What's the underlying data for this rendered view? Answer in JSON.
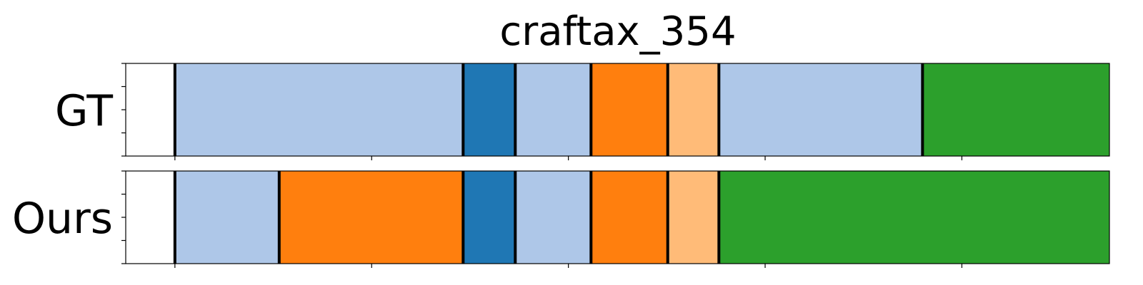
{
  "chart_data": {
    "type": "bar",
    "title": "craftax_354",
    "xlim": [
      0,
      1000
    ],
    "rows": [
      {
        "label": "GT",
        "segments": [
          {
            "start": 50,
            "end": 343,
            "color": "#aec7e8"
          },
          {
            "start": 343,
            "end": 396,
            "color": "#1f77b4"
          },
          {
            "start": 396,
            "end": 473,
            "color": "#aec7e8"
          },
          {
            "start": 473,
            "end": 551,
            "color": "#ff7f0e"
          },
          {
            "start": 551,
            "end": 603,
            "color": "#ffbb78"
          },
          {
            "start": 603,
            "end": 810,
            "color": "#aec7e8"
          },
          {
            "start": 810,
            "end": 1000,
            "color": "#2ca02c"
          }
        ]
      },
      {
        "label": "Ours",
        "segments": [
          {
            "start": 50,
            "end": 156,
            "color": "#aec7e8"
          },
          {
            "start": 156,
            "end": 343,
            "color": "#ff7f0e"
          },
          {
            "start": 343,
            "end": 396,
            "color": "#1f77b4"
          },
          {
            "start": 396,
            "end": 473,
            "color": "#aec7e8"
          },
          {
            "start": 473,
            "end": 551,
            "color": "#ff7f0e"
          },
          {
            "start": 551,
            "end": 603,
            "color": "#ffbb78"
          },
          {
            "start": 603,
            "end": 1000,
            "color": "#2ca02c"
          }
        ]
      }
    ],
    "x_ticks": [
      50,
      250,
      450,
      650,
      850,
      1050
    ],
    "boundary_color": "#000000",
    "tick_labels_shown": false,
    "grid": false
  }
}
